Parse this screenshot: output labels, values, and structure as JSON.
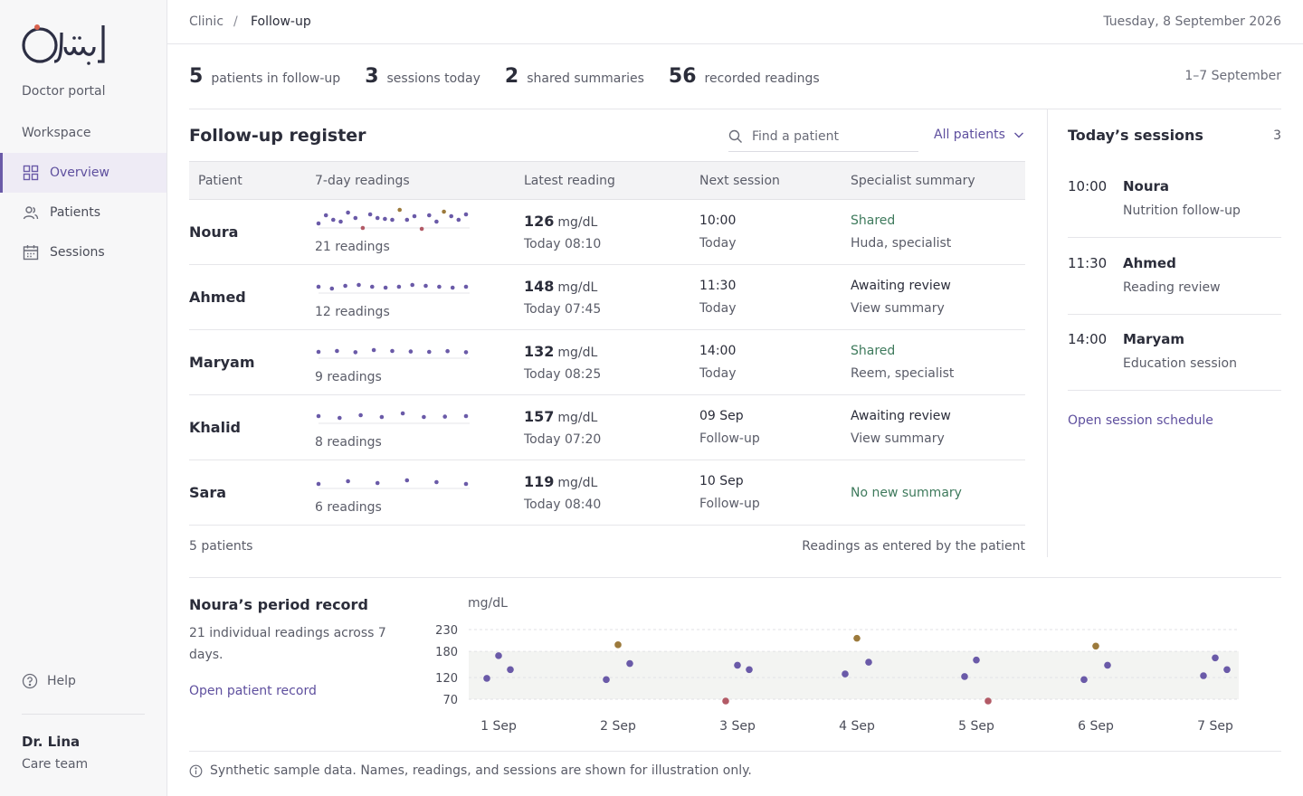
{
  "brand": {
    "logo_text": "إثنين",
    "portal": "Doctor portal"
  },
  "sidebar": {
    "section": "Workspace",
    "items": [
      {
        "label": "Overview",
        "icon": "grid-icon",
        "active": true
      },
      {
        "label": "Patients",
        "icon": "users-icon",
        "active": false
      },
      {
        "label": "Sessions",
        "icon": "calendar-icon",
        "active": false
      }
    ],
    "help": "Help",
    "user": {
      "name": "Dr. Lina",
      "team": "Care team"
    }
  },
  "topbar": {
    "crumb_root": "Clinic",
    "crumb_sep": "/",
    "crumb_current": "Follow-up",
    "date": "Tuesday, 8 September 2026"
  },
  "stats": [
    {
      "value": "5",
      "label": "patients in follow-up"
    },
    {
      "value": "3",
      "label": "sessions today"
    },
    {
      "value": "2",
      "label": "shared summaries"
    },
    {
      "value": "56",
      "label": "recorded readings"
    }
  ],
  "range": "1–7 September",
  "register": {
    "title": "Follow-up register",
    "search_placeholder": "Find a patient",
    "filter": "All patients",
    "columns": [
      "Patient",
      "7-day readings",
      "Latest reading",
      "Next session",
      "Specialist summary"
    ],
    "rows": [
      {
        "name": "Noura",
        "readings": "21 readings",
        "spark": [
          120,
          165,
          140,
          130,
          180,
          150,
          95,
          170,
          150,
          145,
          140,
          195,
          140,
          160,
          90,
          165,
          130,
          185,
          160,
          140,
          170
        ],
        "latest": "126",
        "unit": "mg/dL",
        "latest_time": "Today 08:10",
        "session_time": "10:00",
        "session_day": "Today",
        "summary_status": "Shared",
        "summary_by": "Huda, specialist"
      },
      {
        "name": "Ahmed",
        "readings": "12 readings",
        "spark": [
          130,
          120,
          135,
          140,
          130,
          125,
          130,
          140,
          135,
          130,
          125,
          130
        ],
        "latest": "148",
        "unit": "mg/dL",
        "latest_time": "Today 07:45",
        "session_time": "11:30",
        "session_day": "Today",
        "summary_status": "Awaiting review",
        "summary_by": "View summary"
      },
      {
        "name": "Maryam",
        "readings": "9 readings",
        "spark": [
          130,
          135,
          128,
          140,
          135,
          132,
          130,
          134,
          128
        ],
        "latest": "132",
        "unit": "mg/dL",
        "latest_time": "Today 08:25",
        "session_time": "14:00",
        "session_day": "Today",
        "summary_status": "Shared",
        "summary_by": "Reem, specialist"
      },
      {
        "name": "Khalid",
        "readings": "8 readings",
        "spark": [
          135,
          125,
          140,
          130,
          150,
          130,
          132,
          135
        ],
        "latest": "157",
        "unit": "mg/dL",
        "latest_time": "Today 07:20",
        "session_time": "09 Sep",
        "session_day": "Follow-up",
        "summary_status": "Awaiting review",
        "summary_by": "View summary"
      },
      {
        "name": "Sara",
        "readings": "6 readings",
        "spark": [
          120,
          135,
          125,
          140,
          130,
          120
        ],
        "latest": "119",
        "unit": "mg/dL",
        "latest_time": "Today 08:40",
        "session_time": "10 Sep",
        "session_day": "Follow-up",
        "summary_status": "No new summary",
        "summary_by": ""
      }
    ],
    "footer_left": "5 patients",
    "footer_right": "Readings as entered by the patient"
  },
  "sessions": {
    "title": "Today’s sessions",
    "count": "3",
    "items": [
      {
        "time": "10:00",
        "name": "Noura",
        "desc": "Nutrition follow-up"
      },
      {
        "time": "11:30",
        "name": "Ahmed",
        "desc": "Reading review"
      },
      {
        "time": "14:00",
        "name": "Maryam",
        "desc": "Education session"
      }
    ],
    "link": "Open session schedule"
  },
  "period": {
    "title": "Noura’s period record",
    "desc": "21 individual readings across 7 days.",
    "link": "Open patient record"
  },
  "colors": {
    "normal": "#6a5aa8",
    "high": "#9c7a3c",
    "low": "#b25a66",
    "band": "#f3f4f2",
    "accent": "#5e4f9e"
  },
  "chart_data": {
    "type": "scatter",
    "ylabel": "mg/dL",
    "yticks": [
      230,
      180,
      120,
      70
    ],
    "ylim": [
      70,
      230
    ],
    "target_range": [
      70,
      180
    ],
    "categories": [
      "1 Sep",
      "2 Sep",
      "3 Sep",
      "4 Sep",
      "5 Sep",
      "6 Sep",
      "7 Sep"
    ],
    "points": [
      {
        "day": 0,
        "pos": 0,
        "value": 118
      },
      {
        "day": 0,
        "pos": 1,
        "value": 170
      },
      {
        "day": 0,
        "pos": 2,
        "value": 138
      },
      {
        "day": 1,
        "pos": 0,
        "value": 115
      },
      {
        "day": 1,
        "pos": 1,
        "value": 195
      },
      {
        "day": 1,
        "pos": 2,
        "value": 152
      },
      {
        "day": 2,
        "pos": 0,
        "value": 65
      },
      {
        "day": 2,
        "pos": 1,
        "value": 148
      },
      {
        "day": 2,
        "pos": 2,
        "value": 138
      },
      {
        "day": 3,
        "pos": 0,
        "value": 128
      },
      {
        "day": 3,
        "pos": 1,
        "value": 210
      },
      {
        "day": 3,
        "pos": 2,
        "value": 155
      },
      {
        "day": 4,
        "pos": 0,
        "value": 122
      },
      {
        "day": 4,
        "pos": 1,
        "value": 160
      },
      {
        "day": 4,
        "pos": 2,
        "value": 62
      },
      {
        "day": 5,
        "pos": 0,
        "value": 115
      },
      {
        "day": 5,
        "pos": 1,
        "value": 192
      },
      {
        "day": 5,
        "pos": 2,
        "value": 148
      },
      {
        "day": 6,
        "pos": 0,
        "value": 124
      },
      {
        "day": 6,
        "pos": 1,
        "value": 165
      },
      {
        "day": 6,
        "pos": 2,
        "value": 138
      }
    ]
  },
  "footnote": "Synthetic sample data. Names, readings, and sessions are shown for illustration only."
}
